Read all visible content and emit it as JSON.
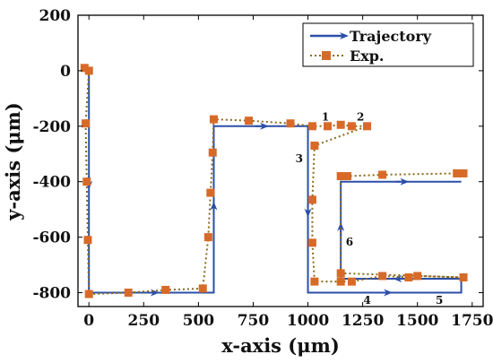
{
  "chart_data": {
    "type": "line",
    "title": "",
    "xlabel": "x-axis (μm)",
    "ylabel": "y-axis (μm)",
    "xlim": [
      -50,
      1800
    ],
    "ylim": [
      -850,
      200
    ],
    "x_ticks": [
      0,
      250,
      500,
      750,
      1000,
      1250,
      1500,
      1750
    ],
    "x_tick_labels": [
      "0",
      "250",
      "500",
      "750",
      "1000",
      "1250",
      "1500",
      "1750"
    ],
    "y_ticks": [
      200,
      0,
      -200,
      -400,
      -600,
      -800
    ],
    "y_tick_labels": [
      "200",
      "0",
      "-200",
      "-400",
      "-600",
      "-800"
    ],
    "grid": false,
    "legend_position": "top-right",
    "series": [
      {
        "name": "Trajectory",
        "color": "#2b4fa8",
        "style": "solid-with-arrows",
        "x": [
          0,
          0,
          570,
          570,
          1000,
          1000,
          1700,
          1700,
          1150,
          1150,
          1700
        ],
        "y": [
          0,
          -800,
          -800,
          -200,
          -200,
          -800,
          -800,
          -750,
          -750,
          -400,
          -400
        ]
      },
      {
        "name": "Exp.",
        "color": "#c0622a",
        "marker_color": "#d86a28",
        "line_color": "#8a6a1a",
        "style": "dotted-with-square-markers",
        "x": [
          -20,
          0,
          -15,
          -10,
          -5,
          0,
          180,
          350,
          520,
          545,
          555,
          565,
          570,
          730,
          920,
          1020,
          1090,
          1150,
          1200,
          1270,
          1030,
          1020,
          1020,
          1030,
          1150,
          1200,
          1340,
          1460,
          1500,
          1710,
          1710,
          1150,
          1150,
          1180,
          1340,
          1680,
          1710
        ],
        "y": [
          10,
          0,
          -190,
          -400,
          -610,
          -805,
          -800,
          -790,
          -785,
          -600,
          -440,
          -295,
          -175,
          -180,
          -190,
          -200,
          -200,
          -195,
          -200,
          -200,
          -270,
          -465,
          -620,
          -760,
          -760,
          -760,
          -740,
          -745,
          -740,
          -745,
          -745,
          -730,
          -380,
          -380,
          -375,
          -370,
          -370
        ]
      }
    ],
    "annotations": [
      {
        "text": "1",
        "x": 1080,
        "y": -180
      },
      {
        "text": "2",
        "x": 1240,
        "y": -180
      },
      {
        "text": "3",
        "x": 960,
        "y": -330
      },
      {
        "text": "4",
        "x": 1270,
        "y": -840
      },
      {
        "text": "5",
        "x": 1600,
        "y": -840
      },
      {
        "text": "6",
        "x": 1190,
        "y": -630
      }
    ]
  }
}
